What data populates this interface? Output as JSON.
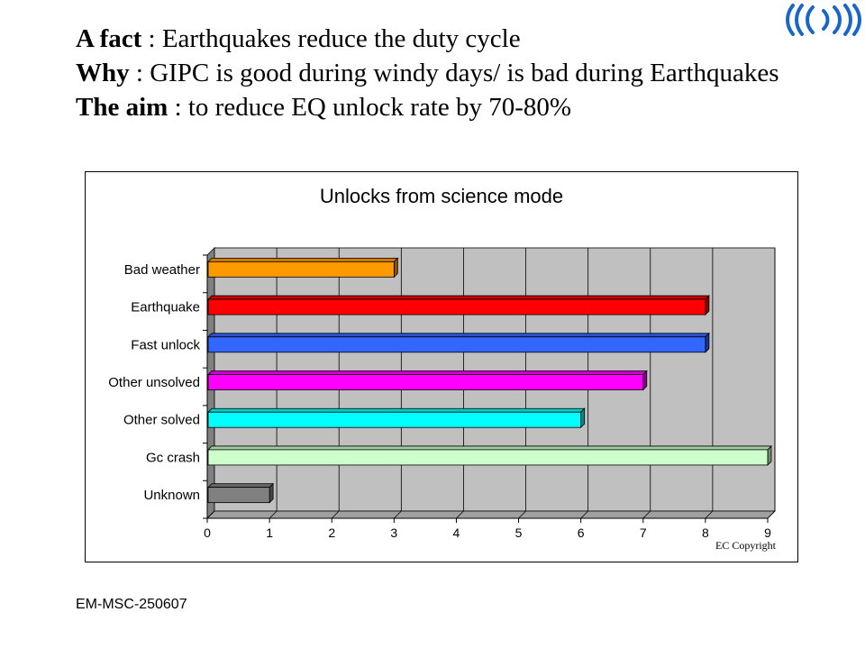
{
  "heading": {
    "line1": {
      "label": "A fact",
      "text": " : Earthquakes reduce the duty cycle"
    },
    "line2": {
      "label": "Why",
      "text": " : GIPC is good during windy days/ is bad during Earthquakes"
    },
    "line3": {
      "label": "The aim",
      "text": " : to reduce EQ unlock rate by 70-80%"
    }
  },
  "logo": {
    "icon": "virgo-waves-logo-icon",
    "color": "#1a66c8"
  },
  "chart_data": {
    "type": "bar",
    "orientation": "horizontal",
    "title": "Unlocks from science mode",
    "xlabel": "",
    "ylabel": "",
    "categories": [
      "Bad weather",
      "Earthquake",
      "Fast unlock",
      "Other unsolved",
      "Other solved",
      "Gc crash",
      "Unknown"
    ],
    "values": [
      3,
      8,
      8,
      7,
      6,
      9,
      1
    ],
    "colors": [
      "#ff9900",
      "#ff0000",
      "#3366ff",
      "#ff00ff",
      "#00ffff",
      "#ccffcc",
      "#808080"
    ],
    "xlim": [
      0,
      9
    ],
    "xticks": [
      "0",
      "1",
      "2",
      "3",
      "4",
      "5",
      "6",
      "7",
      "8",
      "9"
    ],
    "grid": true,
    "plot_background": "#c0c0c0",
    "legend": "none",
    "style": "3d"
  },
  "copyright": "EC Copyright",
  "footer": "EM-MSC-250607"
}
